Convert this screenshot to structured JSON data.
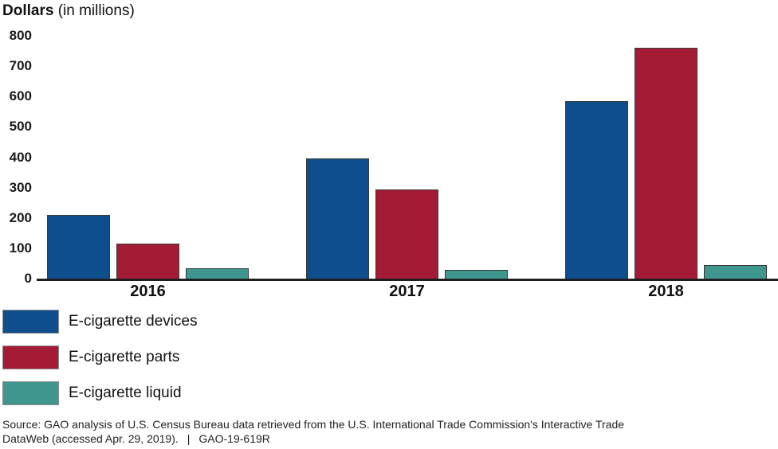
{
  "chart_data": {
    "type": "bar",
    "title_bold": "Dollars",
    "title_rest": " (in millions)",
    "categories": [
      "2016",
      "2017",
      "2018"
    ],
    "series": [
      {
        "name": "E-cigarette devices",
        "color": "#0F4E8D",
        "values": [
          210,
          395,
          585
        ]
      },
      {
        "name": "E-cigarette parts",
        "color": "#A31B34",
        "values": [
          115,
          295,
          760
        ]
      },
      {
        "name": "E-cigarette liquid",
        "color": "#3F968F",
        "values": [
          35,
          30,
          45
        ]
      }
    ],
    "xlabel": "",
    "ylabel": "Dollars (in millions)",
    "ylim": [
      0,
      800
    ],
    "yticks": [
      800,
      700,
      600,
      500,
      400,
      300,
      200,
      100,
      0
    ],
    "grid": false,
    "legend_position": "bottom-left"
  },
  "colors": {
    "axis_line": "#1f1f1f",
    "bar_border": "#3a3a3a",
    "legend_swatch_border": "#8c8c8c",
    "text": "#111111"
  },
  "footer": {
    "source_line1": "Source: GAO analysis of U.S. Census Bureau data retrieved from the U.S. International Trade Commission's Interactive Trade",
    "source_line2": "DataWeb (accessed Apr. 29, 2019).",
    "separator": "|",
    "report_number": "GAO-19-619R"
  }
}
